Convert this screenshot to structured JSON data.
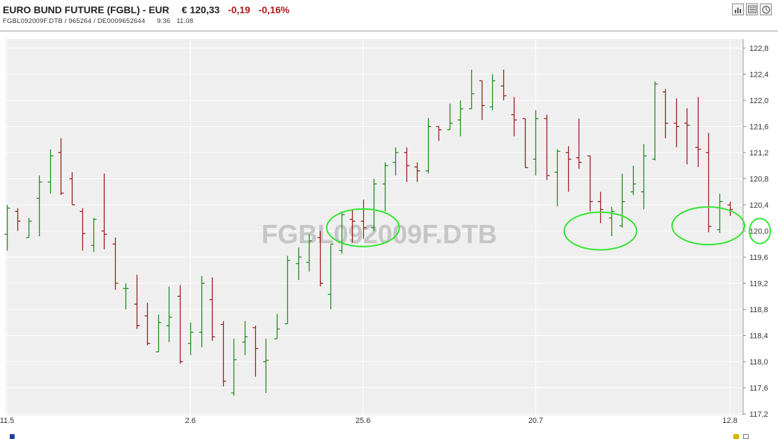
{
  "header": {
    "instrument": "EURO BUND FUTURE (FGBL) - EUR",
    "price": "€ 120,33",
    "change_abs": "-0,19",
    "change_pct": "-0,16%",
    "codes": "FGBL092009F.DTB  /  965264  /  DE0009652644",
    "time": "9:36",
    "date": "11.08"
  },
  "toolbar": {
    "icons": [
      "bar-chart-icon",
      "news-icon",
      "clock-icon"
    ]
  },
  "watermark": "FGBL092009F.DTB",
  "colors": {
    "up": "#1e8a1e",
    "down": "#9a1c1c",
    "circle": "#2ee62e",
    "plot_bg": "#efefef",
    "grid": "#ffffff"
  },
  "chart_data": {
    "type": "ohlc",
    "title": "EURO BUND FUTURE (FGBL) - EUR",
    "x_tick_labels": [
      "11.5",
      "2.6",
      "25.6",
      "20.7",
      "12.8"
    ],
    "y_tick_labels": [
      "122,8",
      "122,4",
      "122,0",
      "121,6",
      "121,2",
      "120,8",
      "120,4",
      "120,0",
      "119,6",
      "119,2",
      "118,8",
      "118,4",
      "118,0",
      "117,6",
      "117,2"
    ],
    "ylim": [
      117.2,
      122.8
    ],
    "grid": true,
    "bars": [
      {
        "x": "11.5",
        "o": 119.95,
        "h": 120.4,
        "l": 119.7,
        "c": 120.35
      },
      {
        "x": "",
        "o": 120.3,
        "h": 120.35,
        "l": 120.0,
        "c": 120.15
      },
      {
        "x": "",
        "o": 119.9,
        "h": 120.2,
        "l": 119.9,
        "c": 120.15
      },
      {
        "x": "",
        "o": 120.5,
        "h": 120.85,
        "l": 119.92,
        "c": 120.75
      },
      {
        "x": "",
        "o": 120.75,
        "h": 121.25,
        "l": 120.57,
        "c": 121.15
      },
      {
        "x": "",
        "o": 121.2,
        "h": 121.42,
        "l": 120.55,
        "c": 120.58
      },
      {
        "x": "",
        "o": 120.8,
        "h": 120.9,
        "l": 120.4,
        "c": 120.4
      },
      {
        "x": "",
        "o": 120.3,
        "h": 120.35,
        "l": 119.7,
        "c": 119.96
      },
      {
        "x": "",
        "o": 119.78,
        "h": 120.2,
        "l": 119.68,
        "c": 120.18
      },
      {
        "x": "",
        "o": 120.0,
        "h": 120.88,
        "l": 119.72,
        "c": 119.95
      },
      {
        "x": "",
        "o": 119.8,
        "h": 119.9,
        "l": 119.1,
        "c": 119.2
      },
      {
        "x": "",
        "o": 119.12,
        "h": 119.2,
        "l": 118.8,
        "c": 119.12
      },
      {
        "x": "",
        "o": 118.88,
        "h": 119.33,
        "l": 118.5,
        "c": 118.55
      },
      {
        "x": "",
        "o": 118.7,
        "h": 118.9,
        "l": 118.25,
        "c": 118.28
      },
      {
        "x": "",
        "o": 118.15,
        "h": 118.72,
        "l": 118.15,
        "c": 118.6
      },
      {
        "x": "",
        "o": 118.55,
        "h": 119.15,
        "l": 118.3,
        "c": 118.68
      },
      {
        "x": "",
        "o": 119.0,
        "h": 119.17,
        "l": 117.97,
        "c": 118.0
      },
      {
        "x": "2.6",
        "o": 118.28,
        "h": 118.6,
        "l": 118.1,
        "c": 118.45
      },
      {
        "x": "",
        "o": 118.45,
        "h": 119.31,
        "l": 118.22,
        "c": 119.2
      },
      {
        "x": "",
        "o": 118.95,
        "h": 119.29,
        "l": 118.32,
        "c": 118.38
      },
      {
        "x": "",
        "o": 118.57,
        "h": 118.62,
        "l": 117.62,
        "c": 117.7
      },
      {
        "x": "",
        "o": 117.52,
        "h": 118.35,
        "l": 117.48,
        "c": 118.03
      },
      {
        "x": "",
        "o": 118.3,
        "h": 118.62,
        "l": 118.1,
        "c": 118.38
      },
      {
        "x": "",
        "o": 118.52,
        "h": 118.55,
        "l": 117.77,
        "c": 118.2
      },
      {
        "x": "",
        "o": 118.0,
        "h": 118.35,
        "l": 117.52,
        "c": 118.02
      },
      {
        "x": "",
        "o": 118.35,
        "h": 118.73,
        "l": 118.35,
        "c": 118.5
      },
      {
        "x": "",
        "o": 118.58,
        "h": 119.62,
        "l": 118.58,
        "c": 119.55
      },
      {
        "x": "",
        "o": 119.5,
        "h": 119.75,
        "l": 119.25,
        "c": 119.6
      },
      {
        "x": "",
        "o": 119.52,
        "h": 119.95,
        "l": 119.38,
        "c": 119.85
      },
      {
        "x": "",
        "o": 119.9,
        "h": 120.0,
        "l": 119.15,
        "c": 119.2
      },
      {
        "x": "",
        "o": 119.03,
        "h": 119.8,
        "l": 118.8,
        "c": 119.8
      },
      {
        "x": "",
        "o": 119.7,
        "h": 120.3,
        "l": 119.65,
        "c": 120.25
      },
      {
        "x": "",
        "o": 120.18,
        "h": 120.32,
        "l": 119.82,
        "c": 120.15
      },
      {
        "x": "25.6",
        "o": 120.15,
        "h": 120.48,
        "l": 119.88,
        "c": 120.05
      },
      {
        "x": "",
        "o": 120.05,
        "h": 120.8,
        "l": 120.0,
        "c": 120.72
      },
      {
        "x": "",
        "o": 120.72,
        "h": 121.05,
        "l": 120.3,
        "c": 121.0
      },
      {
        "x": "",
        "o": 121.05,
        "h": 121.28,
        "l": 120.85,
        "c": 121.2
      },
      {
        "x": "",
        "o": 121.2,
        "h": 121.28,
        "l": 120.75,
        "c": 121.0
      },
      {
        "x": "",
        "o": 120.98,
        "h": 121.05,
        "l": 120.75,
        "c": 120.92
      },
      {
        "x": "",
        "o": 120.92,
        "h": 121.73,
        "l": 120.88,
        "c": 121.6
      },
      {
        "x": "",
        "o": 121.6,
        "h": 121.6,
        "l": 121.38,
        "c": 121.55
      },
      {
        "x": "",
        "o": 121.55,
        "h": 121.95,
        "l": 121.55,
        "c": 121.65
      },
      {
        "x": "",
        "o": 121.7,
        "h": 122.0,
        "l": 121.45,
        "c": 121.87
      },
      {
        "x": "",
        "o": 121.87,
        "h": 122.47,
        "l": 121.87,
        "c": 122.1
      },
      {
        "x": "",
        "o": 122.3,
        "h": 122.3,
        "l": 121.7,
        "c": 121.92
      },
      {
        "x": "",
        "o": 121.9,
        "h": 122.4,
        "l": 121.85,
        "c": 122.3
      },
      {
        "x": "",
        "o": 122.22,
        "h": 122.47,
        "l": 122.0,
        "c": 122.07
      },
      {
        "x": "",
        "o": 121.78,
        "h": 122.05,
        "l": 121.45,
        "c": 121.7
      },
      {
        "x": "",
        "o": 121.72,
        "h": 121.72,
        "l": 120.97,
        "c": 120.97
      },
      {
        "x": "20.7",
        "o": 121.1,
        "h": 121.85,
        "l": 120.85,
        "c": 121.72
      },
      {
        "x": "",
        "o": 121.72,
        "h": 121.78,
        "l": 120.78,
        "c": 120.85
      },
      {
        "x": "",
        "o": 120.9,
        "h": 121.25,
        "l": 120.38,
        "c": 121.22
      },
      {
        "x": "",
        "o": 121.2,
        "h": 121.3,
        "l": 120.6,
        "c": 121.1
      },
      {
        "x": "",
        "o": 121.12,
        "h": 121.72,
        "l": 120.95,
        "c": 121.05
      },
      {
        "x": "",
        "o": 121.15,
        "h": 121.15,
        "l": 120.3,
        "c": 120.45
      },
      {
        "x": "",
        "o": 120.45,
        "h": 120.6,
        "l": 120.12,
        "c": 120.33
      },
      {
        "x": "",
        "o": 120.2,
        "h": 120.37,
        "l": 119.92,
        "c": 120.3
      },
      {
        "x": "",
        "o": 120.08,
        "h": 120.88,
        "l": 120.05,
        "c": 120.45
      },
      {
        "x": "",
        "o": 120.6,
        "h": 121.0,
        "l": 120.55,
        "c": 120.72
      },
      {
        "x": "",
        "o": 120.6,
        "h": 121.33,
        "l": 120.33,
        "c": 121.15
      },
      {
        "x": "",
        "o": 121.1,
        "h": 122.29,
        "l": 121.08,
        "c": 122.25
      },
      {
        "x": "",
        "o": 122.13,
        "h": 122.17,
        "l": 121.42,
        "c": 121.65
      },
      {
        "x": "",
        "o": 121.65,
        "h": 122.03,
        "l": 121.28,
        "c": 121.6
      },
      {
        "x": "",
        "o": 121.65,
        "h": 121.88,
        "l": 121.02,
        "c": 121.62
      },
      {
        "x": "",
        "o": 121.28,
        "h": 122.05,
        "l": 120.98,
        "c": 121.25
      },
      {
        "x": "",
        "o": 121.2,
        "h": 121.5,
        "l": 119.98,
        "c": 120.07
      },
      {
        "x": "",
        "o": 120.02,
        "h": 120.57,
        "l": 119.97,
        "c": 120.45
      },
      {
        "x": "12.8",
        "o": 120.4,
        "h": 120.45,
        "l": 120.23,
        "c": 120.33
      }
    ],
    "annotations": [
      {
        "type": "ellipse",
        "x_index": 33,
        "y": 120.05
      },
      {
        "type": "ellipse",
        "x_index": 55,
        "y": 120.0
      },
      {
        "type": "ellipse",
        "x_index": 65,
        "y": 120.08
      },
      {
        "type": "ellipse",
        "at": "y-axis",
        "y": 120.0
      }
    ]
  }
}
